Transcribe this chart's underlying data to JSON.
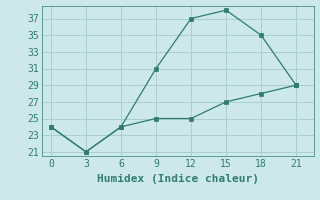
{
  "xlabel": "Humidex (Indice chaleur)",
  "x": [
    0,
    3,
    6,
    9,
    12,
    15,
    18,
    21
  ],
  "y_upper": [
    24,
    21,
    24,
    31,
    37,
    38,
    35,
    29
  ],
  "y_lower": [
    24,
    21,
    24,
    25,
    25,
    27,
    28,
    29
  ],
  "line_color": "#2e7d6e",
  "bg_color": "#cce8e8",
  "plot_bg": "#cce8e8",
  "grid_color": "#aacece",
  "ylim": [
    20.5,
    38.5
  ],
  "xlim": [
    -0.8,
    22.5
  ],
  "yticks": [
    21,
    23,
    25,
    27,
    29,
    31,
    33,
    35,
    37
  ],
  "xticks": [
    0,
    3,
    6,
    9,
    12,
    15,
    18,
    21
  ],
  "xlabel_fontsize": 8,
  "tick_fontsize": 7
}
